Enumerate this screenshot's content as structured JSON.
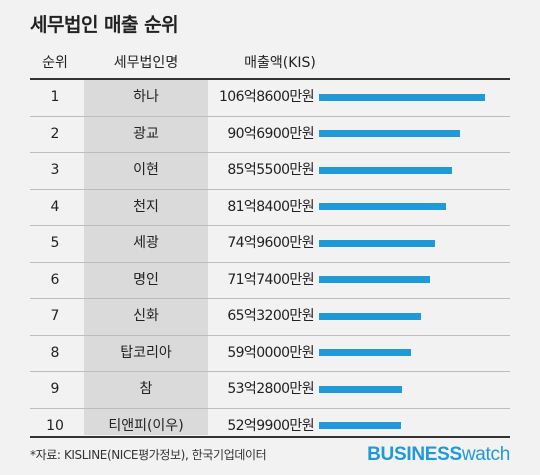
{
  "title": "세무법인 매출 순위",
  "headers": {
    "rank": "순위",
    "firm": "세무법인명",
    "sales": "매출액(KIS)"
  },
  "chart_data": {
    "type": "bar",
    "orientation": "horizontal",
    "title": "세무법인 매출 순위",
    "value_unit": "만원",
    "max_value": 1068600,
    "rows": [
      {
        "rank": "1",
        "firm": "하나",
        "label": "106억8600만원",
        "value": 1068600
      },
      {
        "rank": "2",
        "firm": "광교",
        "label": "90억6900만원",
        "value": 906900
      },
      {
        "rank": "3",
        "firm": "이현",
        "label": "85억5500만원",
        "value": 855500
      },
      {
        "rank": "4",
        "firm": "천지",
        "label": "81억8400만원",
        "value": 818400
      },
      {
        "rank": "5",
        "firm": "세광",
        "label": "74억9600만원",
        "value": 749600
      },
      {
        "rank": "6",
        "firm": "명인",
        "label": "71억7400만원",
        "value": 717400
      },
      {
        "rank": "7",
        "firm": "신화",
        "label": "65억3200만원",
        "value": 653200
      },
      {
        "rank": "8",
        "firm": "탑코리아",
        "label": "59억0000만원",
        "value": 590000
      },
      {
        "rank": "9",
        "firm": "참",
        "label": "53억2800만원",
        "value": 532800
      },
      {
        "rank": "10",
        "firm": "티앤피(이우)",
        "label": "52억9900만원",
        "value": 529900
      }
    ],
    "bar_color": "#1f9ad6"
  },
  "source": "*자료: KISLINE(NICE평가정보), 한국기업데이터",
  "logo": {
    "business": "BUSINESS",
    "watch": "watch"
  }
}
